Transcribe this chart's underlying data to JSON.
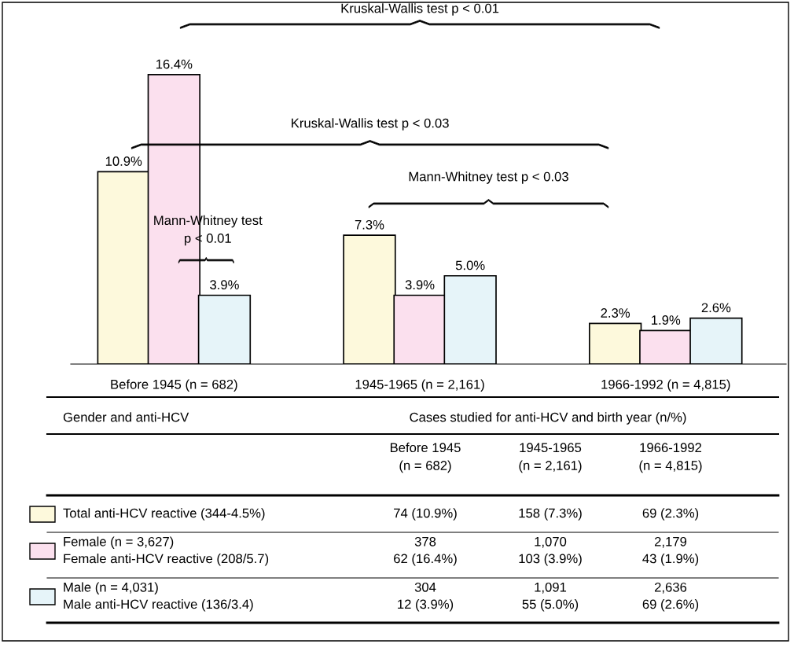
{
  "chart_data": {
    "type": "bar",
    "categories": [
      "Before 1945 (n = 682)",
      "1945-1965 (n = 2,161)",
      "1966-1992 (n = 4,815)"
    ],
    "series": [
      {
        "name": "Total anti-HCV reactive (344-4.5%)",
        "color": "#fdf9dc",
        "values": [
          10.9,
          7.3,
          2.3
        ],
        "value_labels": [
          "10.9%",
          "7.3%",
          "2.3%"
        ]
      },
      {
        "name": "Female (n = 3,627)\nFemale anti-HCV reactive (208/5.7)",
        "color": "#fbe0ee",
        "values": [
          16.4,
          3.9,
          1.9
        ],
        "value_labels": [
          "16.4%",
          "3.9%",
          "1.9%"
        ]
      },
      {
        "name": "Male (n = 4,031)\nMale anti-HCV reactive (136/3.4)",
        "color": "#e6f4f9",
        "values": [
          3.9,
          5.0,
          2.6
        ],
        "value_labels": [
          "3.9%",
          "5.0%",
          "2.6%"
        ]
      }
    ],
    "legend": "bottom",
    "annotations": [
      "Kruskal-Wallis test p < 0.01",
      "Kruskal-Wallis test p < 0.03",
      "Mann-Whitney test p < 0.03",
      "Mann-Whitney test\np < 0.01",
      "Gender and anti-HCV",
      "Cases studied for anti-HCV and birth year (n/%)",
      "Before 1945\n(n = 682)",
      "1945-1965\n(n = 2,161)",
      "1966-1992\n(n = 4,815)",
      "74 (10.9%)",
      "158 (7.3%)",
      "69 (2.3%)",
      "378\n62 (16.4%)",
      "1,070\n103 (3.9%)",
      "2,179\n43 (1.9%)",
      "304\n12 (3.9%)",
      "1,091\n55 (5.0%)",
      "2,636\n69 (2.6%)"
    ]
  }
}
